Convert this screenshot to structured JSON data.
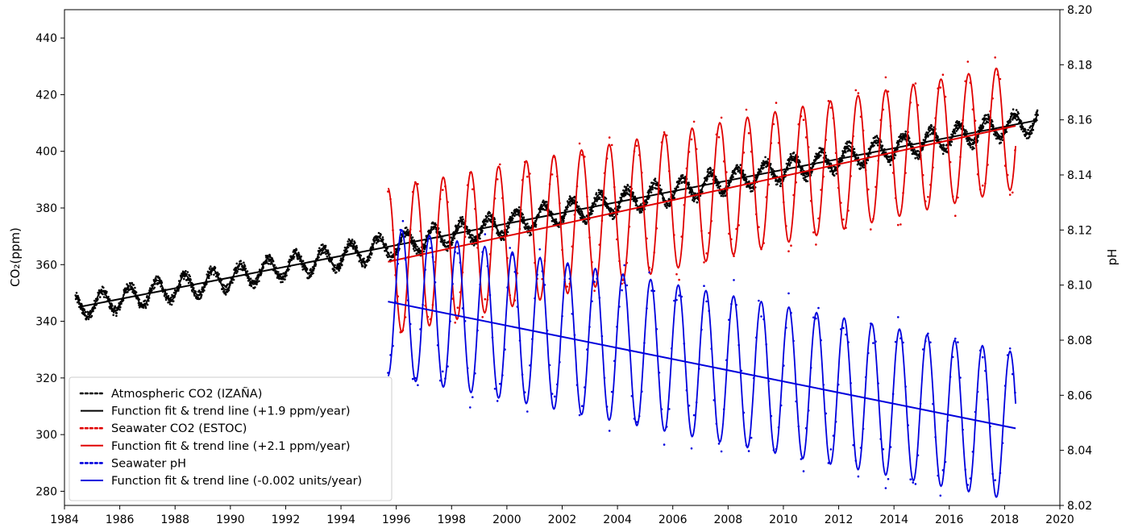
{
  "chart_data": {
    "type": "line",
    "xlabel": "",
    "ylabel_left": "CO₂(ppm)",
    "ylabel_right": "pH",
    "xlim": [
      1984,
      2020
    ],
    "ylim_left": [
      275,
      450
    ],
    "ylim_right": [
      8.02,
      8.2
    ],
    "x_ticks": [
      1984,
      1986,
      1988,
      1990,
      1992,
      1994,
      1996,
      1998,
      2000,
      2002,
      2004,
      2006,
      2008,
      2010,
      2012,
      2014,
      2016,
      2018,
      2020
    ],
    "y_ticks_left": [
      280,
      300,
      320,
      340,
      360,
      380,
      400,
      420,
      440
    ],
    "y_ticks_right": [
      "8.02",
      "8.04",
      "8.06",
      "8.08",
      "8.10",
      "8.12",
      "8.14",
      "8.16",
      "8.18",
      "8.20"
    ],
    "grid": false,
    "legend_position": "bottom-left",
    "colors": {
      "atmospheric": "#000000",
      "seawater_co2": "#e00000",
      "ph": "#0000dd"
    },
    "series": [
      {
        "name": "Atmospheric CO2 (IZAÑA)",
        "style": "points",
        "axis": "left",
        "x_range": [
          1984.4,
          2019.2
        ],
        "trend_start": 345,
        "trend_slope": 1.9,
        "seasonal_amplitude": 4,
        "color": "#000000"
      },
      {
        "name": "Function fit & trend line (+1.9 ppm/year)",
        "style": "fit",
        "axis": "left",
        "trend": {
          "x": [
            1984.5,
            2019.2
          ],
          "y": [
            345,
            411
          ]
        },
        "seasonal_amplitude": 4,
        "color": "#000000"
      },
      {
        "name": "Seawater CO2 (ESTOC)",
        "style": "points",
        "axis": "left",
        "x_range": [
          1995.7,
          2018.4
        ],
        "trend_start": 361,
        "trend_slope": 2.1,
        "seasonal_amplitude_start": 26,
        "seasonal_amplitude_end": 22,
        "color": "#e00000"
      },
      {
        "name": "Function fit & trend line (+2.1 ppm/year)",
        "style": "fit",
        "axis": "left",
        "trend": {
          "x": [
            1995.7,
            2018.4
          ],
          "y": [
            361,
            409
          ]
        },
        "seasonal_amplitude_start": 26,
        "seasonal_amplitude_end": 22,
        "color": "#e00000"
      },
      {
        "name": "Seawater pH",
        "style": "points",
        "axis": "right",
        "x_range": [
          1995.7,
          2018.4
        ],
        "trend_start": 8.094,
        "trend_slope": -0.002,
        "seasonal_amplitude": 0.027,
        "color": "#0000dd"
      },
      {
        "name": "Function fit & trend line (-0.002 units/year)",
        "style": "fit",
        "axis": "right",
        "trend": {
          "x": [
            1995.7,
            2018.4
          ],
          "y": [
            8.094,
            8.048
          ]
        },
        "seasonal_amplitude": 0.027,
        "color": "#0000dd"
      }
    ]
  }
}
